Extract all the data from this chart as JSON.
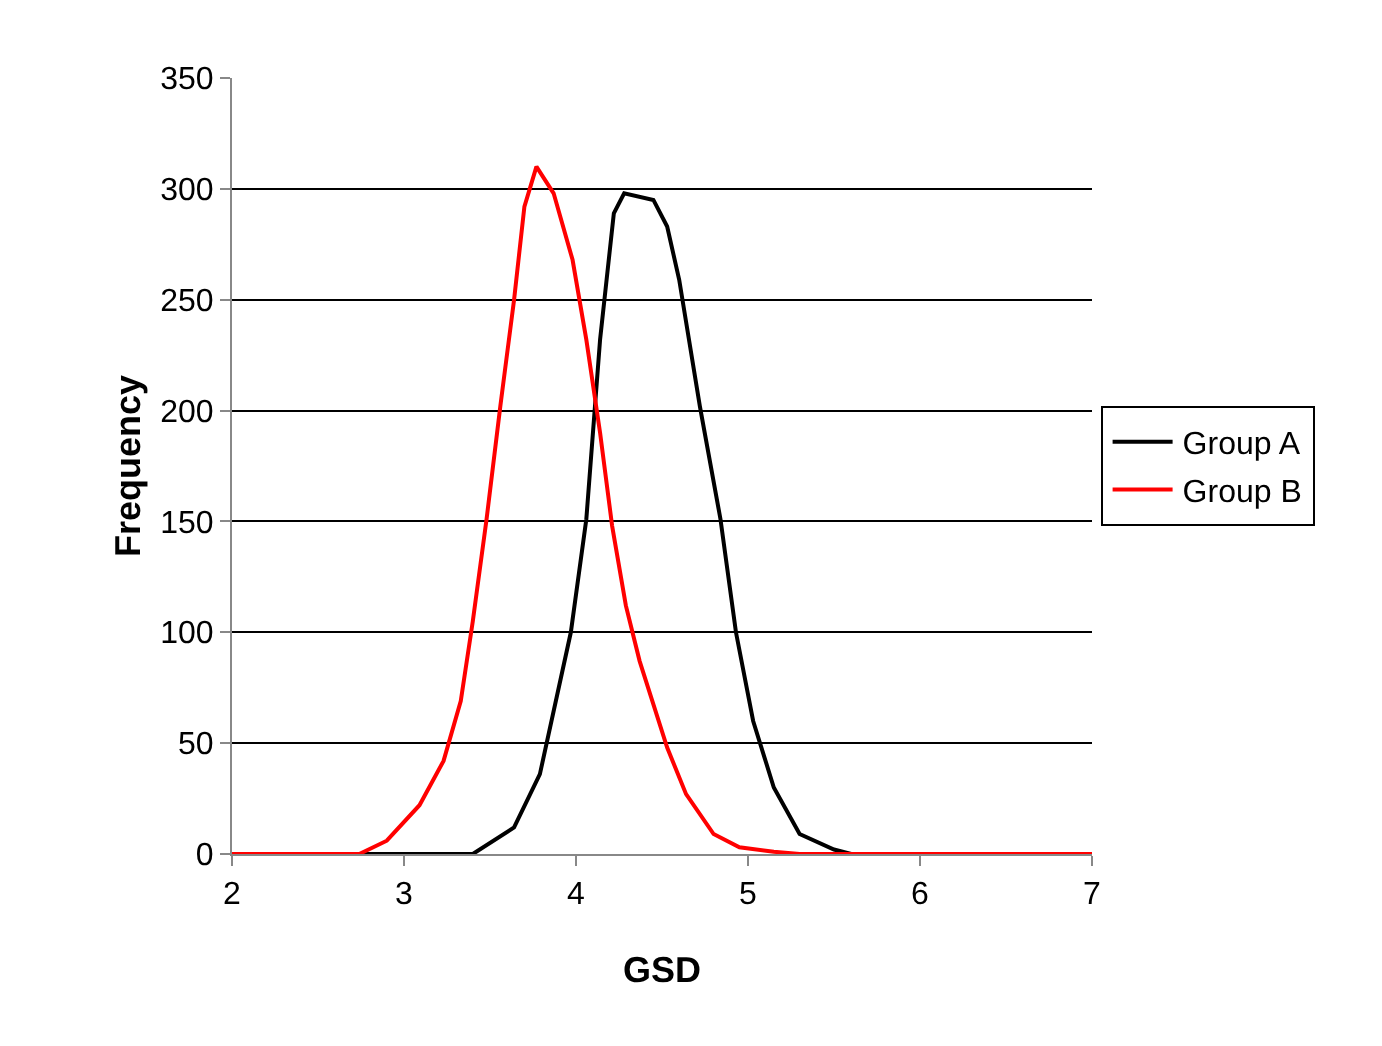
{
  "chart_data": {
    "type": "line",
    "xlabel": "GSD",
    "ylabel": "Frequency",
    "xlim": [
      2,
      7
    ],
    "xticks": [
      2,
      3,
      4,
      5,
      6,
      7
    ],
    "ylim": [
      0,
      350
    ],
    "yticks": [
      0,
      50,
      100,
      150,
      200,
      250,
      300,
      350
    ],
    "grid": "y",
    "legend": "right",
    "marker": "none",
    "line_style": "solid",
    "series": [
      {
        "name": "Group A",
        "color": "#000000",
        "x": [
          2,
          3.4,
          3.64,
          3.79,
          3.97,
          4.06,
          4.14,
          4.22,
          4.28,
          4.45,
          4.53,
          4.6,
          4.72,
          4.84,
          4.93,
          5.03,
          5.15,
          5.3,
          5.5,
          5.6,
          7
        ],
        "values": [
          0,
          0,
          12,
          36,
          100,
          151,
          232,
          289,
          298,
          295,
          283,
          259,
          202,
          151,
          100,
          60,
          30,
          9,
          2,
          0,
          0
        ]
      },
      {
        "name": "Group B",
        "color": "#ff0000",
        "x": [
          2,
          2.74,
          2.9,
          3.09,
          3.23,
          3.33,
          3.4,
          3.48,
          3.56,
          3.64,
          3.7,
          3.77,
          3.87,
          3.98,
          4.06,
          4.14,
          4.21,
          4.29,
          4.37,
          4.53,
          4.64,
          4.8,
          4.95,
          5.15,
          5.3,
          7
        ],
        "values": [
          0,
          0,
          6,
          22,
          42,
          69,
          105,
          151,
          202,
          250,
          292,
          310,
          298,
          268,
          232,
          190,
          148,
          112,
          87,
          48,
          27,
          9,
          3,
          1,
          0,
          0
        ]
      }
    ]
  }
}
